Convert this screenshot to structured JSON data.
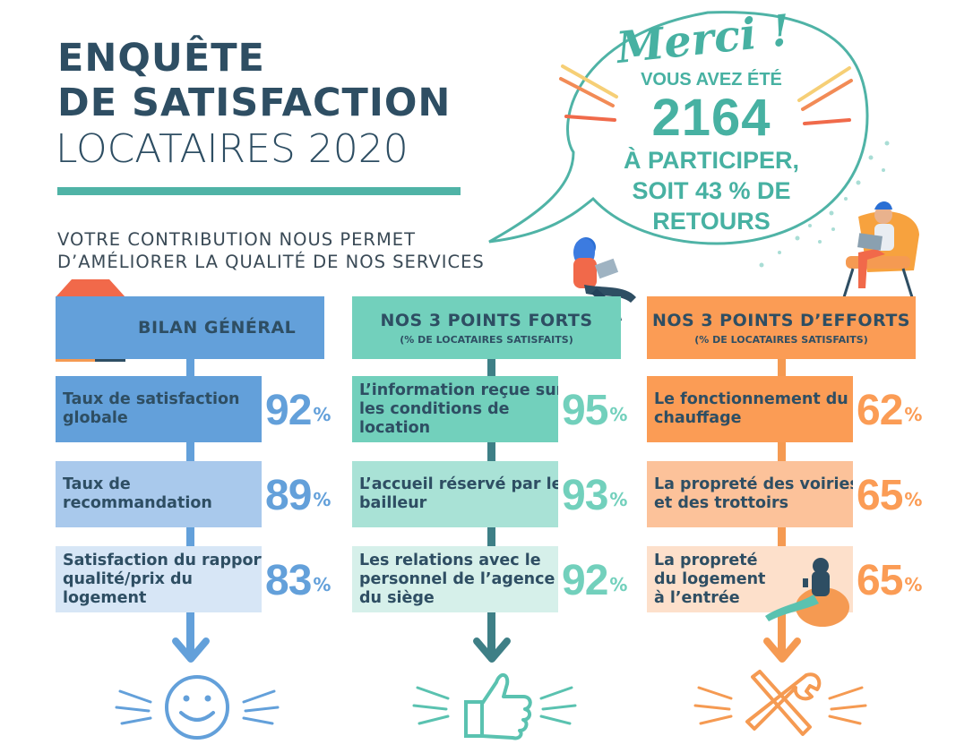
{
  "header": {
    "title_line1": "ENQUÊTE",
    "title_line2": "DE SATISFACTION",
    "title_line3": "LOCATAIRES 2020",
    "subtitle_line1": "VOTRE CONTRIBUTION NOUS PERMET",
    "subtitle_line2": "D’AMÉLIORER LA QUALITÉ DE NOS SERVICES"
  },
  "bubble": {
    "merci": "Merci !",
    "line1": "VOUS AVEZ ÉTÉ",
    "count": "2164",
    "line3": "À PARTICIPER,",
    "line4": "SOIT 43 % DE",
    "line5": "RETOURS"
  },
  "colors": {
    "navy": "#2e4e63",
    "blue": "#63a0da",
    "teal": "#72d0bc",
    "orange": "#fb9c55"
  },
  "columns": [
    {
      "title": "BILAN GÉNÉRAL",
      "subtitle": "",
      "icon": "building-icon",
      "footer_icon": "smiley-icon",
      "items": [
        {
          "label": "Taux de satisfaction globale",
          "value": "92",
          "unit": "%"
        },
        {
          "label": "Taux de recommandation",
          "value": "89",
          "unit": "%"
        },
        {
          "label": "Satisfaction du rapport qualité/prix du logement",
          "value": "83",
          "unit": "%"
        }
      ]
    },
    {
      "title": "NOS 3 POINTS FORTS",
      "subtitle": "(% DE LOCATAIRES SATISFAITS)",
      "icon": "woman-laptop-illustration",
      "footer_icon": "thumbs-up-icon",
      "items": [
        {
          "label": "L’information reçue sur les conditions de location",
          "value": "95",
          "unit": "%"
        },
        {
          "label": "L’accueil réservé par le bailleur",
          "value": "93",
          "unit": "%"
        },
        {
          "label": "Les relations avec le personnel de l’agence / du siège",
          "value": "92",
          "unit": "%"
        }
      ]
    },
    {
      "title": "NOS 3 POINTS D’EFFORTS",
      "subtitle": "(% DE LOCATAIRES SATISFAITS)",
      "icon": "man-chair-illustration",
      "footer_icon": "tools-icon",
      "items": [
        {
          "label": "Le fonctionnement du chauffage",
          "value": "62",
          "unit": "%"
        },
        {
          "label": "La propreté des voiries et des trottoirs",
          "value": "65",
          "unit": "%"
        },
        {
          "label": "La propreté du logement à l’entrée",
          "value": "65",
          "unit": "%"
        }
      ]
    }
  ]
}
